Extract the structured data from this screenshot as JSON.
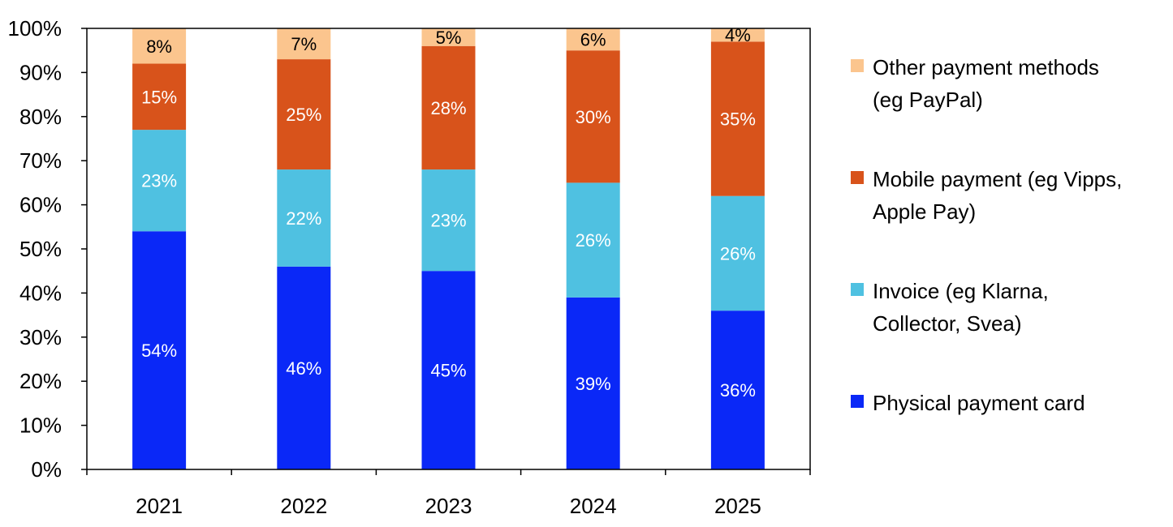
{
  "chart_data": {
    "type": "bar",
    "stacked": true,
    "title": "",
    "xlabel": "",
    "ylabel": "",
    "ylim": [
      0,
      100
    ],
    "y_ticks": [
      "0%",
      "10%",
      "20%",
      "30%",
      "40%",
      "50%",
      "60%",
      "70%",
      "80%",
      "90%",
      "100%"
    ],
    "grid": false,
    "legend_position": "right",
    "categories": [
      "2021",
      "2022",
      "2023",
      "2024",
      "2025"
    ],
    "series": [
      {
        "name": "Physical payment card",
        "legend_lines": [
          "Physical payment card"
        ],
        "color": "#0a28f7",
        "label_color": "#ffffff",
        "values": [
          54,
          46,
          45,
          39,
          36
        ],
        "labels": [
          "54%",
          "46%",
          "45%",
          "39%",
          "36%"
        ]
      },
      {
        "name": "Invoice (eg Klarna, Collector, Svea)",
        "legend_lines": [
          "Invoice (eg Klarna,",
          "Collector, Svea)"
        ],
        "color": "#4fc1e1",
        "label_color": "#ffffff",
        "values": [
          23,
          22,
          23,
          26,
          26
        ],
        "labels": [
          "23%",
          "22%",
          "23%",
          "26%",
          "26%"
        ]
      },
      {
        "name": "Mobile payment (eg Vipps, Apple Pay)",
        "legend_lines": [
          "Mobile payment (eg Vipps,",
          "Apple Pay)"
        ],
        "color": "#d8531b",
        "label_color": "#ffffff",
        "values": [
          15,
          25,
          28,
          30,
          35
        ],
        "labels": [
          "15%",
          "25%",
          "28%",
          "30%",
          "35%"
        ]
      },
      {
        "name": "Other payment methods (eg PayPal)",
        "legend_lines": [
          "Other payment methods",
          "(eg PayPal)"
        ],
        "color": "#fbc58e",
        "label_color": "#000000",
        "values": [
          8,
          7,
          5,
          6,
          4
        ],
        "labels": [
          "8%",
          "7%",
          "5%",
          "6%",
          "4%"
        ]
      }
    ]
  }
}
